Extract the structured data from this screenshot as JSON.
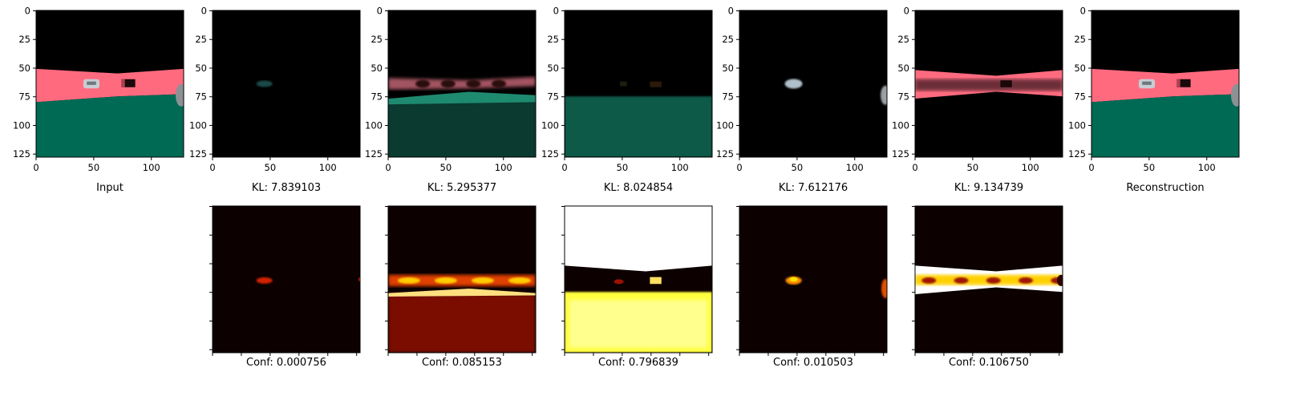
{
  "figure": {
    "top_row": [
      {
        "id": "input",
        "caption": "Input",
        "scene": "full"
      },
      {
        "id": "slot-1",
        "caption": "KL: 7.839103",
        "scene": "slot1"
      },
      {
        "id": "slot-2",
        "caption": "KL: 5.295377",
        "scene": "slot2"
      },
      {
        "id": "slot-3",
        "caption": "KL: 8.024854",
        "scene": "slot3"
      },
      {
        "id": "slot-4",
        "caption": "KL: 7.612176",
        "scene": "slot4"
      },
      {
        "id": "slot-5",
        "caption": "KL: 9.134739",
        "scene": "slot5"
      },
      {
        "id": "reconstruction",
        "caption": "Reconstruction",
        "scene": "full"
      }
    ],
    "bottom_row": [
      {
        "id": "mask-1",
        "caption": "Conf: 0.000756",
        "confidence": 0.000756,
        "mask": "car"
      },
      {
        "id": "mask-2",
        "caption": "Conf: 0.085153",
        "confidence": 0.085153,
        "mask": "road_top"
      },
      {
        "id": "mask-3",
        "caption": "Conf: 0.796839",
        "confidence": 0.796839,
        "mask": "sky_ground"
      },
      {
        "id": "mask-4",
        "caption": "Conf: 0.010503",
        "confidence": 0.010503,
        "mask": "car2"
      },
      {
        "id": "mask-5",
        "caption": "Conf: 0.106750",
        "confidence": 0.10675,
        "mask": "road_band"
      }
    ],
    "axis": {
      "y_ticks": [
        "0",
        "25",
        "50",
        "75",
        "100",
        "125"
      ],
      "x_ticks": [
        "0",
        "50",
        "100"
      ]
    },
    "colors": {
      "road": "#ff6a7f",
      "ground": "#006a55",
      "sky": "#000000",
      "mask_low": "#0d0000",
      "mask_high": "#ffffff"
    }
  }
}
